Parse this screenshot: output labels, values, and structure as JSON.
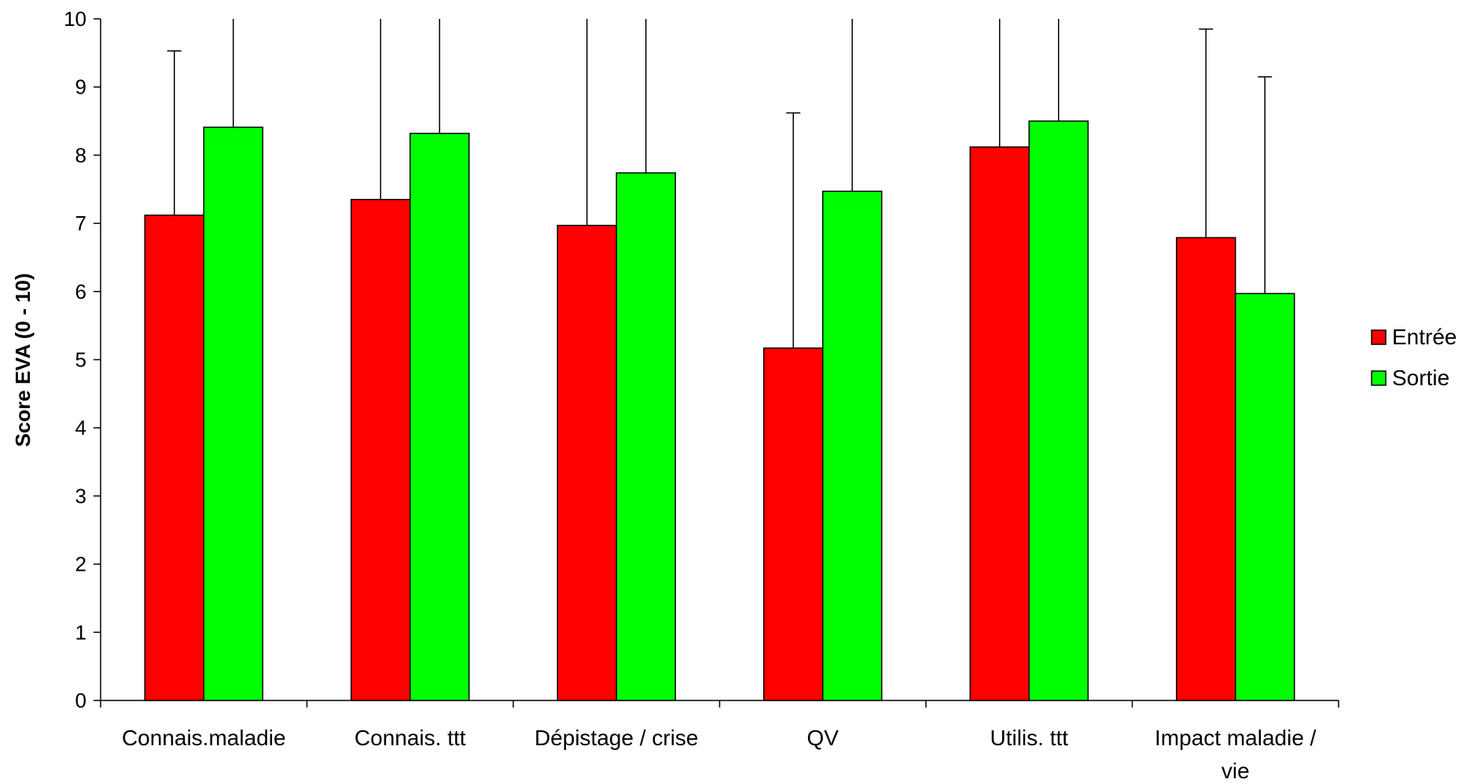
{
  "chart_data": {
    "type": "bar",
    "categories": [
      "Connais.maladie",
      "Connais. ttt",
      "Dépistage / crise",
      "QV",
      "Utilis. ttt",
      "Impact maladie / vie"
    ],
    "series": [
      {
        "name": "Entrée",
        "color": "#ff0000",
        "values": [
          7.12,
          7.35,
          6.97,
          5.17,
          8.12,
          6.79
        ],
        "error_upper": [
          9.53,
          10,
          10,
          8.62,
          10,
          9.85
        ]
      },
      {
        "name": "Sortie",
        "color": "#00ff00",
        "values": [
          8.41,
          8.32,
          7.74,
          7.47,
          8.5,
          5.97
        ],
        "error_upper": [
          10,
          10,
          10,
          10,
          10,
          9.15
        ]
      }
    ],
    "title": "",
    "xlabel": "",
    "ylabel": "Score EVA (0 - 10)",
    "ylim": [
      0,
      10
    ],
    "yticks": [
      "0",
      "1",
      "2",
      "3",
      "4",
      "5",
      "6",
      "7",
      "8",
      "9",
      "10"
    ],
    "grid": false,
    "legend_position": "right"
  }
}
